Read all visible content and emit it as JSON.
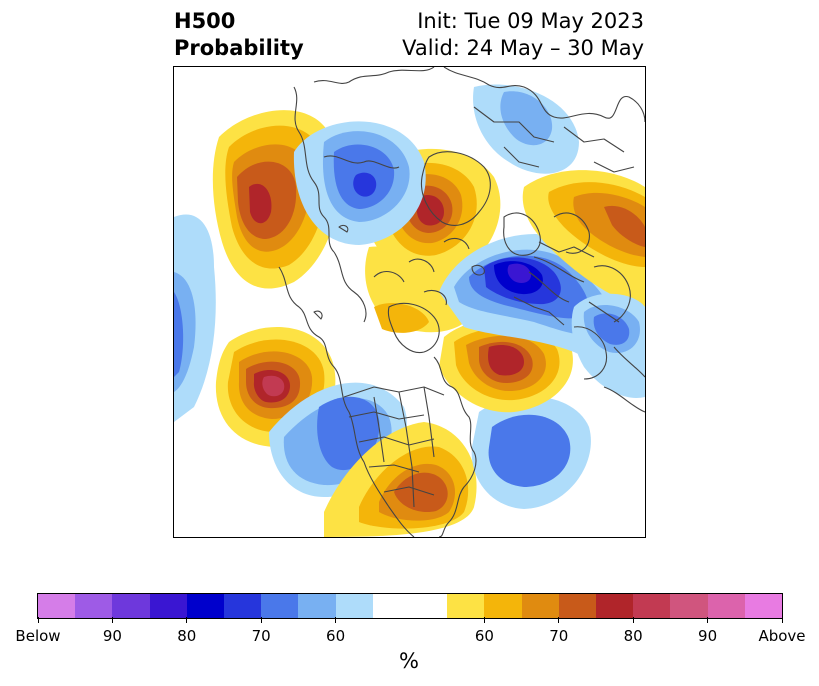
{
  "header": {
    "title_line1": "H500",
    "title_line2": "Probability",
    "init_text": "Init: Tue 09 May 2023",
    "valid_text": "Valid: 24 May – 30 May"
  },
  "colorbar": {
    "unit": "%",
    "colors": [
      "#d57de8",
      "#9e5be6",
      "#6e38dc",
      "#3a16d2",
      "#0000cc",
      "#2636dc",
      "#4a78ea",
      "#78b0f2",
      "#aedcfa",
      "#ffffff",
      "#ffffff",
      "#fde244",
      "#f4b50a",
      "#e08b10",
      "#c85a1a",
      "#b0252a",
      "#c23a52",
      "#d0557e",
      "#dc63ac",
      "#e87be2"
    ],
    "tick_labels": [
      "Below",
      "90",
      "80",
      "70",
      "60",
      "60",
      "70",
      "80",
      "90",
      "Above"
    ]
  },
  "legend_palette": {
    "below": [
      "#aedcfa",
      "#78b0f2",
      "#4a78ea",
      "#2636dc",
      "#0000cc"
    ],
    "above": [
      "#fde244",
      "#f4b50a",
      "#e08b10",
      "#c85a1a",
      "#b0252a",
      "#c23a52",
      "#dc63ac"
    ],
    "coast": "#444444"
  }
}
